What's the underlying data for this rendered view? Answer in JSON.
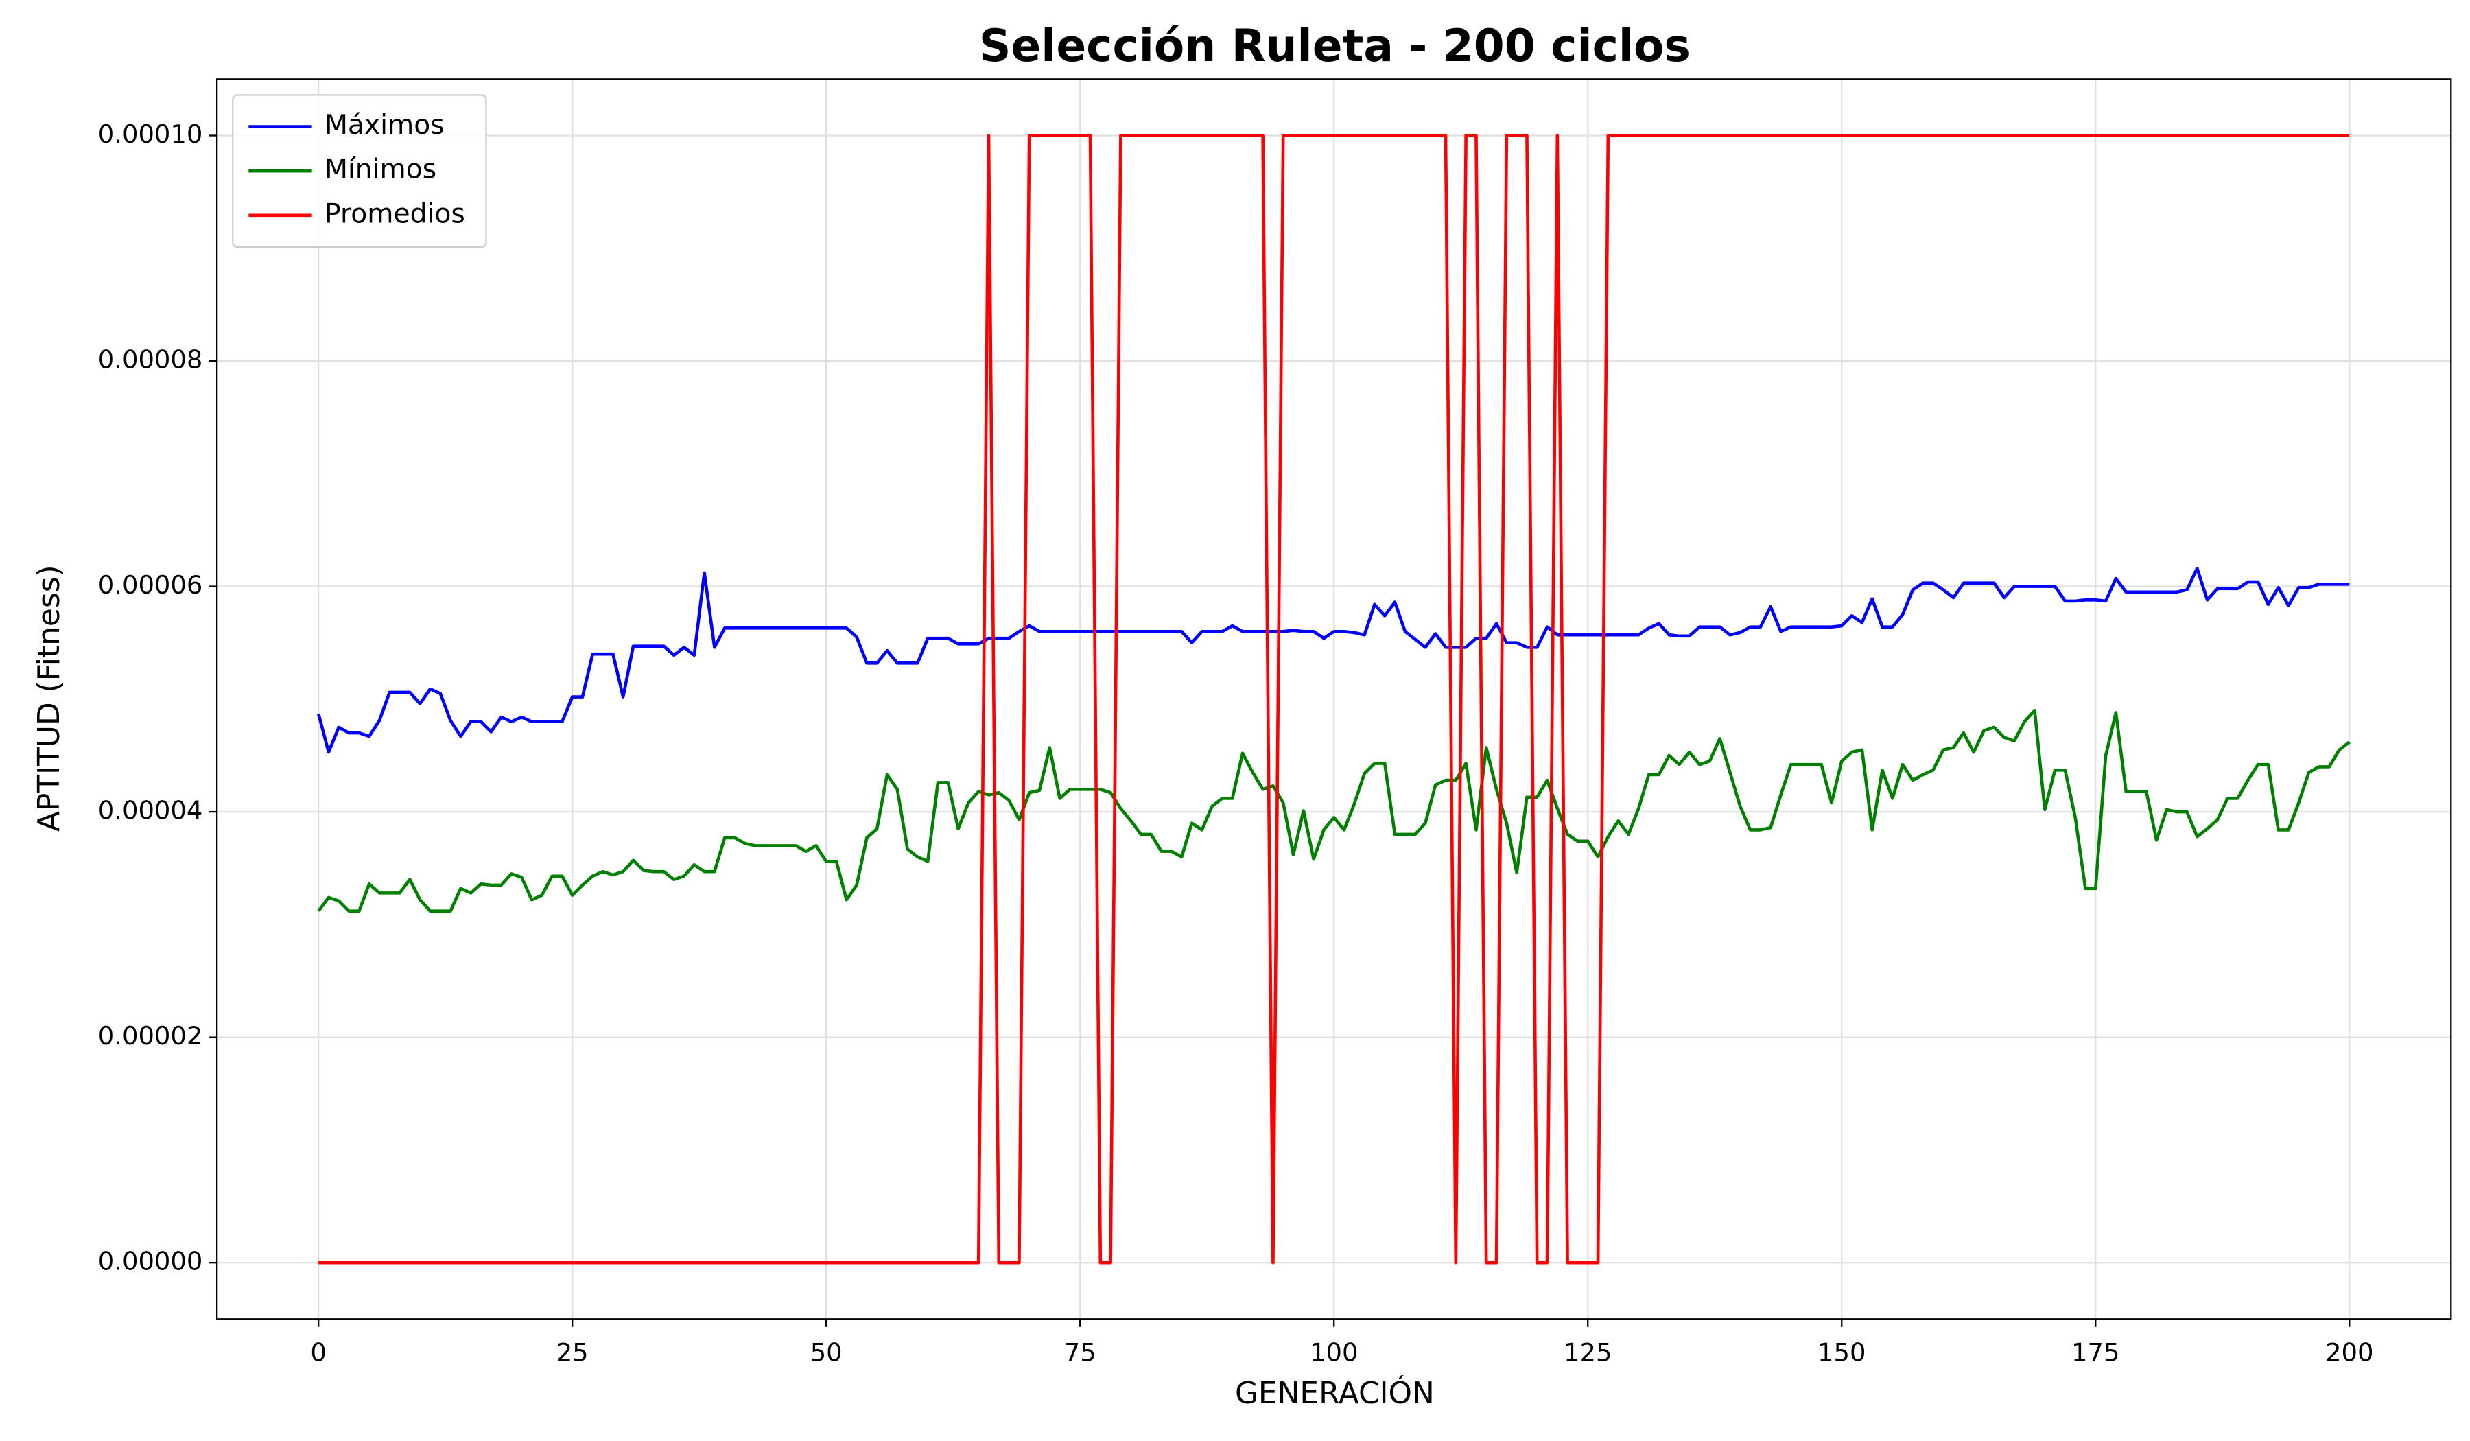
{
  "chart_data": {
    "type": "line",
    "title": "Selección Ruleta - 200 ciclos",
    "x_label": "GENERACIÓN",
    "y_label": "APTITUD (Fitness)",
    "x": [
      0,
      1,
      2,
      3,
      4,
      5,
      6,
      7,
      8,
      9,
      10,
      11,
      12,
      13,
      14,
      15,
      16,
      17,
      18,
      19,
      20,
      21,
      22,
      23,
      24,
      25,
      26,
      27,
      28,
      29,
      30,
      31,
      32,
      33,
      34,
      35,
      36,
      37,
      38,
      39,
      40,
      41,
      42,
      43,
      44,
      45,
      46,
      47,
      48,
      49,
      50,
      51,
      52,
      53,
      54,
      55,
      56,
      57,
      58,
      59,
      60,
      61,
      62,
      63,
      64,
      65,
      66,
      67,
      68,
      69,
      70,
      71,
      72,
      73,
      74,
      75,
      76,
      77,
      78,
      79,
      80,
      81,
      82,
      83,
      84,
      85,
      86,
      87,
      88,
      89,
      90,
      91,
      92,
      93,
      94,
      95,
      96,
      97,
      98,
      99,
      100,
      101,
      102,
      103,
      104,
      105,
      106,
      107,
      108,
      109,
      110,
      111,
      112,
      113,
      114,
      115,
      116,
      117,
      118,
      119,
      120,
      121,
      122,
      123,
      124,
      125,
      126,
      127,
      128,
      129,
      130,
      131,
      132,
      133,
      134,
      135,
      136,
      137,
      138,
      139,
      140,
      141,
      142,
      143,
      144,
      145,
      146,
      147,
      148,
      149,
      150,
      151,
      152,
      153,
      154,
      155,
      156,
      157,
      158,
      159,
      160,
      161,
      162,
      163,
      164,
      165,
      166,
      167,
      168,
      169,
      170,
      171,
      172,
      173,
      174,
      175,
      176,
      177,
      178,
      179,
      180,
      181,
      182,
      183,
      184,
      185,
      186,
      187,
      188,
      189,
      190,
      191,
      192,
      193,
      194,
      195,
      196,
      197,
      198,
      199,
      200
    ],
    "series": [
      {
        "name": "Máximos",
        "color": "#0000ff",
        "values": [
          4.87e-05,
          4.53e-05,
          4.75e-05,
          4.7e-05,
          4.7e-05,
          4.67e-05,
          4.81e-05,
          5.06e-05,
          5.06e-05,
          5.06e-05,
          4.96e-05,
          5.09e-05,
          5.05e-05,
          4.81e-05,
          4.67e-05,
          4.8e-05,
          4.8e-05,
          4.71e-05,
          4.84e-05,
          4.8e-05,
          4.84e-05,
          4.8e-05,
          4.8e-05,
          4.8e-05,
          4.8e-05,
          5.02e-05,
          5.02e-05,
          5.4e-05,
          5.4e-05,
          5.4e-05,
          5.02e-05,
          5.47e-05,
          5.47e-05,
          5.47e-05,
          5.47e-05,
          5.39e-05,
          5.46e-05,
          5.39e-05,
          6.12e-05,
          5.46e-05,
          5.63e-05,
          5.63e-05,
          5.63e-05,
          5.63e-05,
          5.63e-05,
          5.63e-05,
          5.63e-05,
          5.63e-05,
          5.63e-05,
          5.63e-05,
          5.63e-05,
          5.63e-05,
          5.63e-05,
          5.55e-05,
          5.32e-05,
          5.32e-05,
          5.43e-05,
          5.32e-05,
          5.32e-05,
          5.32e-05,
          5.54e-05,
          5.54e-05,
          5.54e-05,
          5.49e-05,
          5.49e-05,
          5.49e-05,
          5.54e-05,
          5.54e-05,
          5.54e-05,
          5.6e-05,
          5.65e-05,
          5.6e-05,
          5.6e-05,
          5.6e-05,
          5.6e-05,
          5.6e-05,
          5.6e-05,
          5.6e-05,
          5.6e-05,
          5.6e-05,
          5.6e-05,
          5.6e-05,
          5.6e-05,
          5.6e-05,
          5.6e-05,
          5.6e-05,
          5.5e-05,
          5.6e-05,
          5.6e-05,
          5.6e-05,
          5.65e-05,
          5.6e-05,
          5.6e-05,
          5.6e-05,
          5.6e-05,
          5.6e-05,
          5.61e-05,
          5.6e-05,
          5.6e-05,
          5.54e-05,
          5.6e-05,
          5.6e-05,
          5.59e-05,
          5.57e-05,
          5.84e-05,
          5.74e-05,
          5.86e-05,
          5.6e-05,
          5.53e-05,
          5.46e-05,
          5.58e-05,
          5.46e-05,
          5.46e-05,
          5.46e-05,
          5.54e-05,
          5.54e-05,
          5.67e-05,
          5.5e-05,
          5.5e-05,
          5.46e-05,
          5.46e-05,
          5.64e-05,
          5.57e-05,
          5.57e-05,
          5.57e-05,
          5.57e-05,
          5.57e-05,
          5.57e-05,
          5.57e-05,
          5.57e-05,
          5.57e-05,
          5.63e-05,
          5.67e-05,
          5.57e-05,
          5.56e-05,
          5.56e-05,
          5.64e-05,
          5.64e-05,
          5.64e-05,
          5.57e-05,
          5.59e-05,
          5.64e-05,
          5.64e-05,
          5.82e-05,
          5.6e-05,
          5.64e-05,
          5.64e-05,
          5.64e-05,
          5.64e-05,
          5.64e-05,
          5.65e-05,
          5.74e-05,
          5.68e-05,
          5.89e-05,
          5.64e-05,
          5.64e-05,
          5.75e-05,
          5.97e-05,
          6.03e-05,
          6.03e-05,
          5.97e-05,
          5.9e-05,
          6.03e-05,
          6.03e-05,
          6.03e-05,
          6.03e-05,
          5.9e-05,
          6e-05,
          6e-05,
          6e-05,
          6e-05,
          6e-05,
          5.87e-05,
          5.87e-05,
          5.88e-05,
          5.88e-05,
          5.87e-05,
          6.07e-05,
          5.95e-05,
          5.95e-05,
          5.95e-05,
          5.95e-05,
          5.95e-05,
          5.95e-05,
          5.97e-05,
          6.16e-05,
          5.88e-05,
          5.98e-05,
          5.98e-05,
          5.98e-05,
          6.04e-05,
          6.04e-05,
          5.84e-05,
          5.99e-05,
          5.83e-05,
          5.99e-05,
          5.99e-05,
          6.02e-05,
          6.02e-05,
          6.02e-05,
          6.02e-05
        ]
      },
      {
        "name": "Mínimos",
        "color": "#008000",
        "values": [
          3.12e-05,
          3.24e-05,
          3.21e-05,
          3.12e-05,
          3.12e-05,
          3.36e-05,
          3.28e-05,
          3.28e-05,
          3.28e-05,
          3.4e-05,
          3.22e-05,
          3.12e-05,
          3.12e-05,
          3.12e-05,
          3.32e-05,
          3.28e-05,
          3.36e-05,
          3.35e-05,
          3.35e-05,
          3.45e-05,
          3.42e-05,
          3.22e-05,
          3.26e-05,
          3.43e-05,
          3.43e-05,
          3.26e-05,
          3.35e-05,
          3.43e-05,
          3.47e-05,
          3.44e-05,
          3.47e-05,
          3.57e-05,
          3.48e-05,
          3.47e-05,
          3.47e-05,
          3.4e-05,
          3.43e-05,
          3.53e-05,
          3.47e-05,
          3.47e-05,
          3.77e-05,
          3.77e-05,
          3.72e-05,
          3.7e-05,
          3.7e-05,
          3.7e-05,
          3.7e-05,
          3.7e-05,
          3.65e-05,
          3.7e-05,
          3.56e-05,
          3.56e-05,
          3.22e-05,
          3.35e-05,
          3.77e-05,
          3.85e-05,
          4.33e-05,
          4.2e-05,
          3.67e-05,
          3.6e-05,
          3.56e-05,
          4.26e-05,
          4.26e-05,
          3.85e-05,
          4.08e-05,
          4.18e-05,
          4.15e-05,
          4.17e-05,
          4.1e-05,
          3.93e-05,
          4.17e-05,
          4.19e-05,
          4.57e-05,
          4.12e-05,
          4.2e-05,
          4.2e-05,
          4.2e-05,
          4.2e-05,
          4.17e-05,
          4.03e-05,
          3.92e-05,
          3.8e-05,
          3.8e-05,
          3.65e-05,
          3.65e-05,
          3.6e-05,
          3.9e-05,
          3.84e-05,
          4.05e-05,
          4.12e-05,
          4.12e-05,
          4.52e-05,
          4.35e-05,
          4.2e-05,
          4.23e-05,
          4.08e-05,
          3.62e-05,
          4.01e-05,
          3.58e-05,
          3.84e-05,
          3.95e-05,
          3.84e-05,
          4.07e-05,
          4.34e-05,
          4.43e-05,
          4.43e-05,
          3.8e-05,
          3.8e-05,
          3.8e-05,
          3.9e-05,
          4.24e-05,
          4.28e-05,
          4.28e-05,
          4.43e-05,
          3.84e-05,
          4.57e-05,
          4.2e-05,
          3.9e-05,
          3.46e-05,
          4.13e-05,
          4.13e-05,
          4.28e-05,
          4.03e-05,
          3.8e-05,
          3.74e-05,
          3.74e-05,
          3.6e-05,
          3.78e-05,
          3.92e-05,
          3.8e-05,
          4.03e-05,
          4.33e-05,
          4.33e-05,
          4.5e-05,
          4.42e-05,
          4.53e-05,
          4.42e-05,
          4.45e-05,
          4.65e-05,
          4.35e-05,
          4.05e-05,
          3.84e-05,
          3.84e-05,
          3.86e-05,
          4.15e-05,
          4.42e-05,
          4.42e-05,
          4.42e-05,
          4.42e-05,
          4.08e-05,
          4.45e-05,
          4.53e-05,
          4.55e-05,
          3.84e-05,
          4.37e-05,
          4.12e-05,
          4.42e-05,
          4.28e-05,
          4.33e-05,
          4.37e-05,
          4.55e-05,
          4.57e-05,
          4.7e-05,
          4.53e-05,
          4.72e-05,
          4.75e-05,
          4.66e-05,
          4.63e-05,
          4.8e-05,
          4.9e-05,
          4.02e-05,
          4.37e-05,
          4.37e-05,
          3.95e-05,
          3.32e-05,
          3.32e-05,
          4.5e-05,
          4.88e-05,
          4.18e-05,
          4.18e-05,
          4.18e-05,
          3.75e-05,
          4.02e-05,
          4e-05,
          4e-05,
          3.78e-05,
          3.85e-05,
          3.93e-05,
          4.12e-05,
          4.12e-05,
          4.28e-05,
          4.42e-05,
          4.42e-05,
          3.84e-05,
          3.84e-05,
          4.08e-05,
          4.35e-05,
          4.4e-05,
          4.4e-05,
          4.55e-05,
          4.62e-05
        ]
      },
      {
        "name": "Promedios",
        "color": "#ff0000",
        "values": [
          0,
          0,
          0,
          0,
          0,
          0,
          0,
          0,
          0,
          0,
          0,
          0,
          0,
          0,
          0,
          0,
          0,
          0,
          0,
          0,
          0,
          0,
          0,
          0,
          0,
          0,
          0,
          0,
          0,
          0,
          0,
          0,
          0,
          0,
          0,
          0,
          0,
          0,
          0,
          0,
          0,
          0,
          0,
          0,
          0,
          0,
          0,
          0,
          0,
          0,
          0,
          0,
          0,
          0,
          0,
          0,
          0,
          0,
          0,
          0,
          0,
          0,
          0,
          0,
          0,
          0,
          0.0001,
          0,
          0,
          0,
          0.0001,
          0.0001,
          0.0001,
          0.0001,
          0.0001,
          0.0001,
          0.0001,
          0,
          0,
          0.0001,
          0.0001,
          0.0001,
          0.0001,
          0.0001,
          0.0001,
          0.0001,
          0.0001,
          0.0001,
          0.0001,
          0.0001,
          0.0001,
          0.0001,
          0.0001,
          0.0001,
          0,
          0.0001,
          0.0001,
          0.0001,
          0.0001,
          0.0001,
          0.0001,
          0.0001,
          0.0001,
          0.0001,
          0.0001,
          0.0001,
          0.0001,
          0.0001,
          0.0001,
          0.0001,
          0.0001,
          0.0001,
          0,
          0.0001,
          0.0001,
          0,
          0,
          0.0001,
          0.0001,
          0.0001,
          0,
          0,
          0.0001,
          0,
          0,
          0,
          0,
          0.0001,
          0.0001,
          0.0001,
          0.0001,
          0.0001,
          0.0001,
          0.0001,
          0.0001,
          0.0001,
          0.0001,
          0.0001,
          0.0001,
          0.0001,
          0.0001,
          0.0001,
          0.0001,
          0.0001,
          0.0001,
          0.0001,
          0.0001,
          0.0001,
          0.0001,
          0.0001,
          0.0001,
          0.0001,
          0.0001,
          0.0001,
          0.0001,
          0.0001,
          0.0001,
          0.0001,
          0.0001,
          0.0001,
          0.0001,
          0.0001,
          0.0001,
          0.0001,
          0.0001,
          0.0001,
          0.0001,
          0.0001,
          0.0001,
          0.0001,
          0.0001,
          0.0001,
          0.0001,
          0.0001,
          0.0001,
          0.0001,
          0.0001,
          0.0001,
          0.0001,
          0.0001,
          0.0001,
          0.0001,
          0.0001,
          0.0001,
          0.0001,
          0.0001,
          0.0001,
          0.0001,
          0.0001,
          0.0001,
          0.0001,
          0.0001,
          0.0001,
          0.0001,
          0.0001,
          0.0001,
          0.0001,
          0.0001,
          0.0001,
          0.0001,
          0.0001
        ]
      }
    ],
    "xlim": [
      -10,
      210
    ],
    "xticks": [
      0,
      25,
      50,
      75,
      100,
      125,
      150,
      175,
      200
    ],
    "ylim": [
      -5e-06,
      0.000105
    ],
    "yticks": [
      {
        "value": 0,
        "label": "0.00000"
      },
      {
        "value": 2e-05,
        "label": "0.00002"
      },
      {
        "value": 4e-05,
        "label": "0.00004"
      },
      {
        "value": 6e-05,
        "label": "0.00006"
      },
      {
        "value": 8e-05,
        "label": "0.00008"
      },
      {
        "value": 0.0001,
        "label": "0.00010"
      }
    ],
    "grid": true,
    "legend": "upper left"
  }
}
